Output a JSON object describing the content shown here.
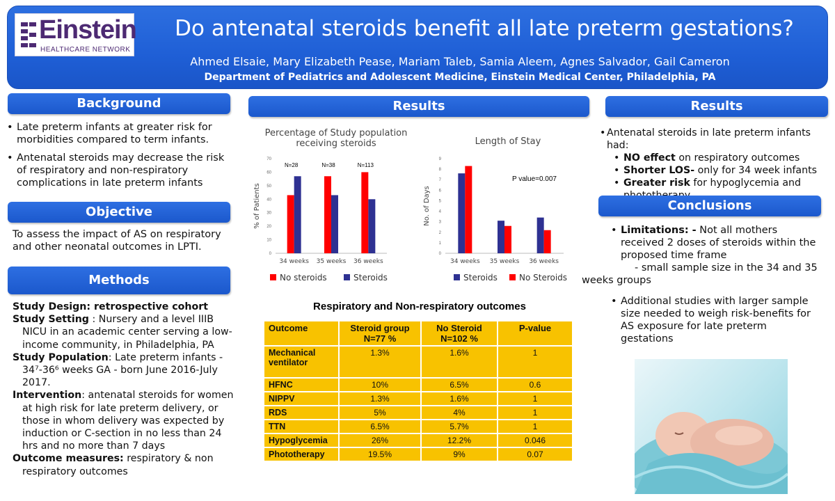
{
  "header": {
    "logo_word": "Einstein",
    "logo_sub": "HEALTHCARE NETWORK",
    "title": "Do antenatal steroids benefit all late preterm gestations?",
    "authors": "Ahmed Elsaie, Mary Elizabeth Pease, Mariam Taleb, Samia Aleem, Agnes Salvador, Gail Cameron",
    "affiliation": "Department of Pediatrics and Adolescent Medicine, Einstein Medical Center, Philadelphia,  PA"
  },
  "background": {
    "heading": "Background",
    "bullets": [
      "Late preterm infants at greater risk for morbidities compared to term infants.",
      "Antenatal steroids may decrease the risk of respiratory and non-respiratory complications in late preterm infants"
    ]
  },
  "objective": {
    "heading": "Objective",
    "text": "To assess the impact of AS on respiratory and other neonatal outcomes in LPTI."
  },
  "methods": {
    "heading": "Methods",
    "items": [
      {
        "label": "Study Design: retrospective cohort",
        "text": ""
      },
      {
        "label": "Study Setting",
        "text": " : Nursery and a level IIIB NICU in an academic center serving a low-income community, in Philadelphia, PA"
      },
      {
        "label": "Study Population",
        "text": ": Late preterm infants - 34⁷-36⁶ weeks GA - born June 2016-July 2017."
      },
      {
        "label": "Intervention",
        "text": ": antenatal steroids for women at high risk for late preterm delivery, or those in whom delivery was expected by induction or C-section in no less than 24 hrs and no more than 7 days"
      },
      {
        "label": "Outcome measures:",
        "text": " respiratory & non respiratory outcomes"
      }
    ]
  },
  "results_mid": {
    "heading": "Results",
    "table_title": "Respiratory and Non-respiratory outcomes",
    "table_headers": [
      "Outcome",
      "Steroid group N=77 %",
      "No Steroid N=102 %",
      "P-value"
    ],
    "table_rows": [
      [
        "Mechanical ventilator",
        "1.3%",
        "1.6%",
        "1"
      ],
      [
        "HFNC",
        "10%",
        "6.5%",
        "0.6"
      ],
      [
        "NIPPV",
        "1.3%",
        "1.6%",
        "1"
      ],
      [
        "RDS",
        "5%",
        "4%",
        "1"
      ],
      [
        "TTN",
        "6.5%",
        "5.7%",
        "1"
      ],
      [
        "Hypoglycemia",
        "26%",
        "12.2%",
        "0.046"
      ],
      [
        "Phototherapy",
        "19.5%",
        "9%",
        "0.07"
      ]
    ]
  },
  "results_right": {
    "heading": "Results",
    "intro": "Antenatal steroids in late preterm infants had:",
    "points": [
      {
        "bold": "NO effect",
        "rest": " on respiratory outcomes"
      },
      {
        "bold": "Shorter LOS-",
        "rest": " only for 34 week infants"
      },
      {
        "bold": "Greater risk",
        "rest": " for hypoglycemia and phototherapy."
      }
    ]
  },
  "conclusions": {
    "heading": "Conclusions",
    "lim_label": "Limitations: -",
    "lim_text": " Not all mothers received 2 doses of steroids within the proposed time frame",
    "lim_text2": "- small sample size in the 34 and 35 weeks groups",
    "additional": "Additional studies with larger sample size needed to weigh risk-benefits for AS exposure for late preterm gestations"
  },
  "chart_data": [
    {
      "type": "bar",
      "title": "Percentage of Study population receiving steroids",
      "ylabel": "% of Patients",
      "categories": [
        "34 weeks",
        "35 weeks",
        "36 weeks"
      ],
      "ylim": [
        0,
        70
      ],
      "yticks": [
        0,
        10,
        20,
        30,
        40,
        50,
        60,
        70
      ],
      "annotations": [
        "N=28",
        "N=38",
        "N=113"
      ],
      "series": [
        {
          "name": "No steroids",
          "color": "#ff0000",
          "values": [
            43,
            57,
            60
          ]
        },
        {
          "name": "Steroids",
          "color": "#2e3192",
          "values": [
            57,
            43,
            40
          ]
        }
      ]
    },
    {
      "type": "bar",
      "title": "Length of Stay",
      "ylabel": "No. of Days",
      "categories": [
        "34 weeks",
        "35 weeks",
        "36 weeks"
      ],
      "ylim": [
        0,
        9
      ],
      "yticks": [
        0,
        1,
        2,
        3,
        4,
        5,
        6,
        7,
        8,
        9
      ],
      "annotation": "P value=0.007",
      "series": [
        {
          "name": "Steroids",
          "color": "#2e3192",
          "values": [
            7.6,
            3.1,
            3.4
          ]
        },
        {
          "name": "No Steroids",
          "color": "#ff0000",
          "values": [
            8.3,
            2.6,
            2.2
          ]
        }
      ]
    }
  ]
}
